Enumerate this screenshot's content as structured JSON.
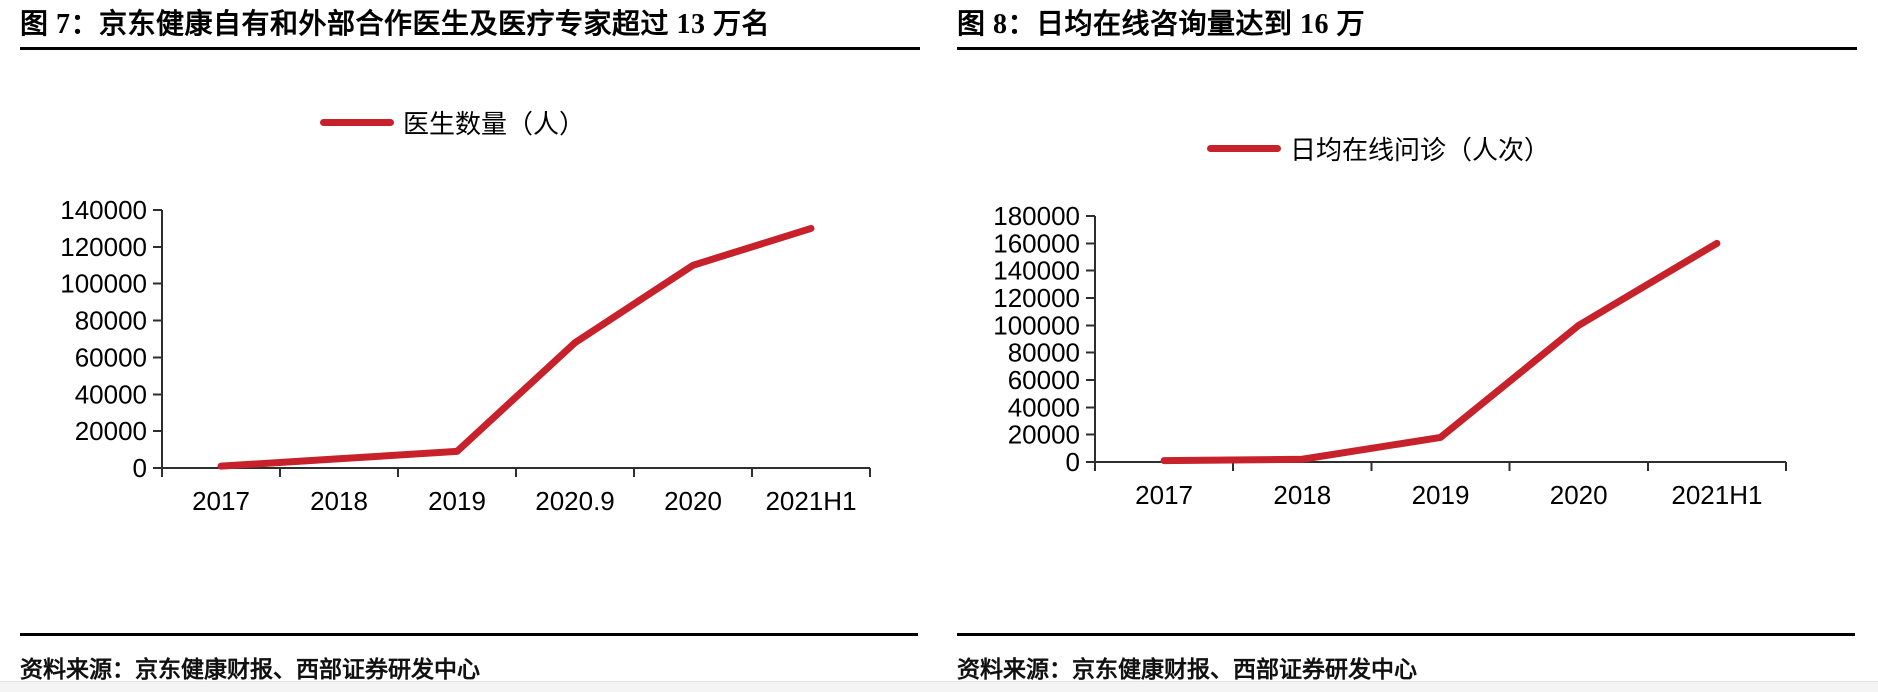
{
  "page": {
    "background": "#ffffff",
    "accent_red": "#C7222B",
    "axis_color": "#2e2e2e",
    "bottom_strip_color": "#f4f4f4"
  },
  "figures": [
    {
      "caption": "图 7：京东健康自有和外部合作医生及医疗专家超过 13 万名",
      "legend_label": "医生数量（人）",
      "source": "资料来源：京东健康财报、西部证券研发中心"
    },
    {
      "caption": "图 8：日均在线咨询量达到 16 万",
      "legend_label": "日均在线问诊（人次）",
      "source": "资料来源：京东健康财报、西部证券研发中心"
    }
  ],
  "chart_data": [
    {
      "type": "line",
      "title": "图 7：京东健康自有和外部合作医生及医疗专家超过 13 万名",
      "legend": [
        "医生数量（人）"
      ],
      "legend_position": "top",
      "grid": false,
      "categories": [
        "2017",
        "2018",
        "2019",
        "2020.9",
        "2020",
        "2021H1"
      ],
      "series": [
        {
          "name": "医生数量（人）",
          "color": "#C7222B",
          "values": [
            1000,
            5000,
            9000,
            68000,
            110000,
            130000
          ]
        }
      ],
      "xlabel": "",
      "ylabel": "",
      "ylim": [
        0,
        140000
      ],
      "yticks": [
        0,
        20000,
        40000,
        60000,
        80000,
        100000,
        120000,
        140000
      ]
    },
    {
      "type": "line",
      "title": "图 8：日均在线咨询量达到 16 万",
      "legend": [
        "日均在线问诊（人次）"
      ],
      "legend_position": "top",
      "grid": false,
      "categories": [
        "2017",
        "2018",
        "2019",
        "2020",
        "2021H1"
      ],
      "series": [
        {
          "name": "日均在线问诊（人次）",
          "color": "#C7222B",
          "values": [
            1000,
            2000,
            18000,
            100000,
            160000
          ]
        }
      ],
      "xlabel": "",
      "ylabel": "",
      "ylim": [
        0,
        180000
      ],
      "yticks": [
        0,
        20000,
        40000,
        60000,
        80000,
        100000,
        120000,
        140000,
        160000,
        180000
      ]
    }
  ]
}
